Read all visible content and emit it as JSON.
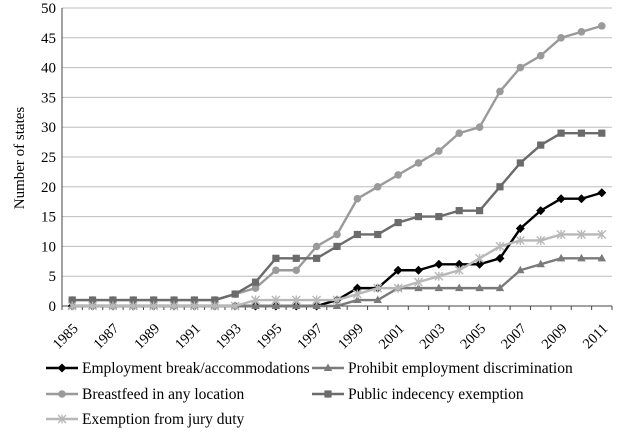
{
  "chart_data": {
    "type": "line",
    "title": "",
    "xlabel": "",
    "ylabel": "Number of states",
    "ylim": [
      0,
      50
    ],
    "yticks": [
      0,
      5,
      10,
      15,
      20,
      25,
      30,
      35,
      40,
      45,
      50
    ],
    "xlim": [
      1985,
      2011
    ],
    "xtick_labels": [
      "1985",
      "1987",
      "1989",
      "1991",
      "1993",
      "1995",
      "1997",
      "1999",
      "2001",
      "2003",
      "2005",
      "2007",
      "2009",
      "2011"
    ],
    "grid": "horizontal",
    "legend_position": "bottom",
    "x": [
      1985,
      1986,
      1987,
      1988,
      1989,
      1990,
      1991,
      1992,
      1993,
      1994,
      1995,
      1996,
      1997,
      1998,
      1999,
      2000,
      2001,
      2002,
      2003,
      2004,
      2005,
      2006,
      2007,
      2008,
      2009,
      2010,
      2011
    ],
    "series": [
      {
        "name": "Employment break/accommodations",
        "color": "#000000",
        "marker": "diamond",
        "values": [
          0,
          0,
          0,
          0,
          0,
          0,
          0,
          0,
          0,
          0,
          0,
          0,
          0,
          1,
          3,
          3,
          6,
          6,
          7,
          7,
          7,
          8,
          13,
          16,
          18,
          18,
          19
        ]
      },
      {
        "name": "Prohibit employment discrimination",
        "color": "#7a7a7a",
        "marker": "triangle",
        "values": [
          0,
          0,
          0,
          0,
          0,
          0,
          0,
          0,
          0,
          0,
          0,
          0,
          0,
          0,
          1,
          1,
          3,
          3,
          3,
          3,
          3,
          3,
          6,
          7,
          8,
          8,
          8
        ]
      },
      {
        "name": "Breastfeed in any location",
        "color": "#9a9a9a",
        "marker": "circle",
        "values": [
          1,
          1,
          1,
          1,
          1,
          1,
          1,
          1,
          2,
          3,
          6,
          6,
          10,
          12,
          18,
          20,
          22,
          24,
          26,
          29,
          30,
          36,
          40,
          42,
          45,
          46,
          47
        ]
      },
      {
        "name": "Public indecency exemption",
        "color": "#6b6b6b",
        "marker": "square",
        "values": [
          1,
          1,
          1,
          1,
          1,
          1,
          1,
          1,
          2,
          4,
          8,
          8,
          8,
          10,
          12,
          12,
          14,
          15,
          15,
          16,
          16,
          20,
          24,
          27,
          29,
          29,
          29
        ]
      },
      {
        "name": "Exemption from jury duty",
        "color": "#b8b8b8",
        "marker": "star",
        "values": [
          0,
          0,
          0,
          0,
          0,
          0,
          0,
          0,
          0,
          1,
          1,
          1,
          1,
          1,
          2,
          3,
          3,
          4,
          5,
          6,
          8,
          10,
          11,
          11,
          12,
          12,
          12
        ]
      }
    ]
  }
}
